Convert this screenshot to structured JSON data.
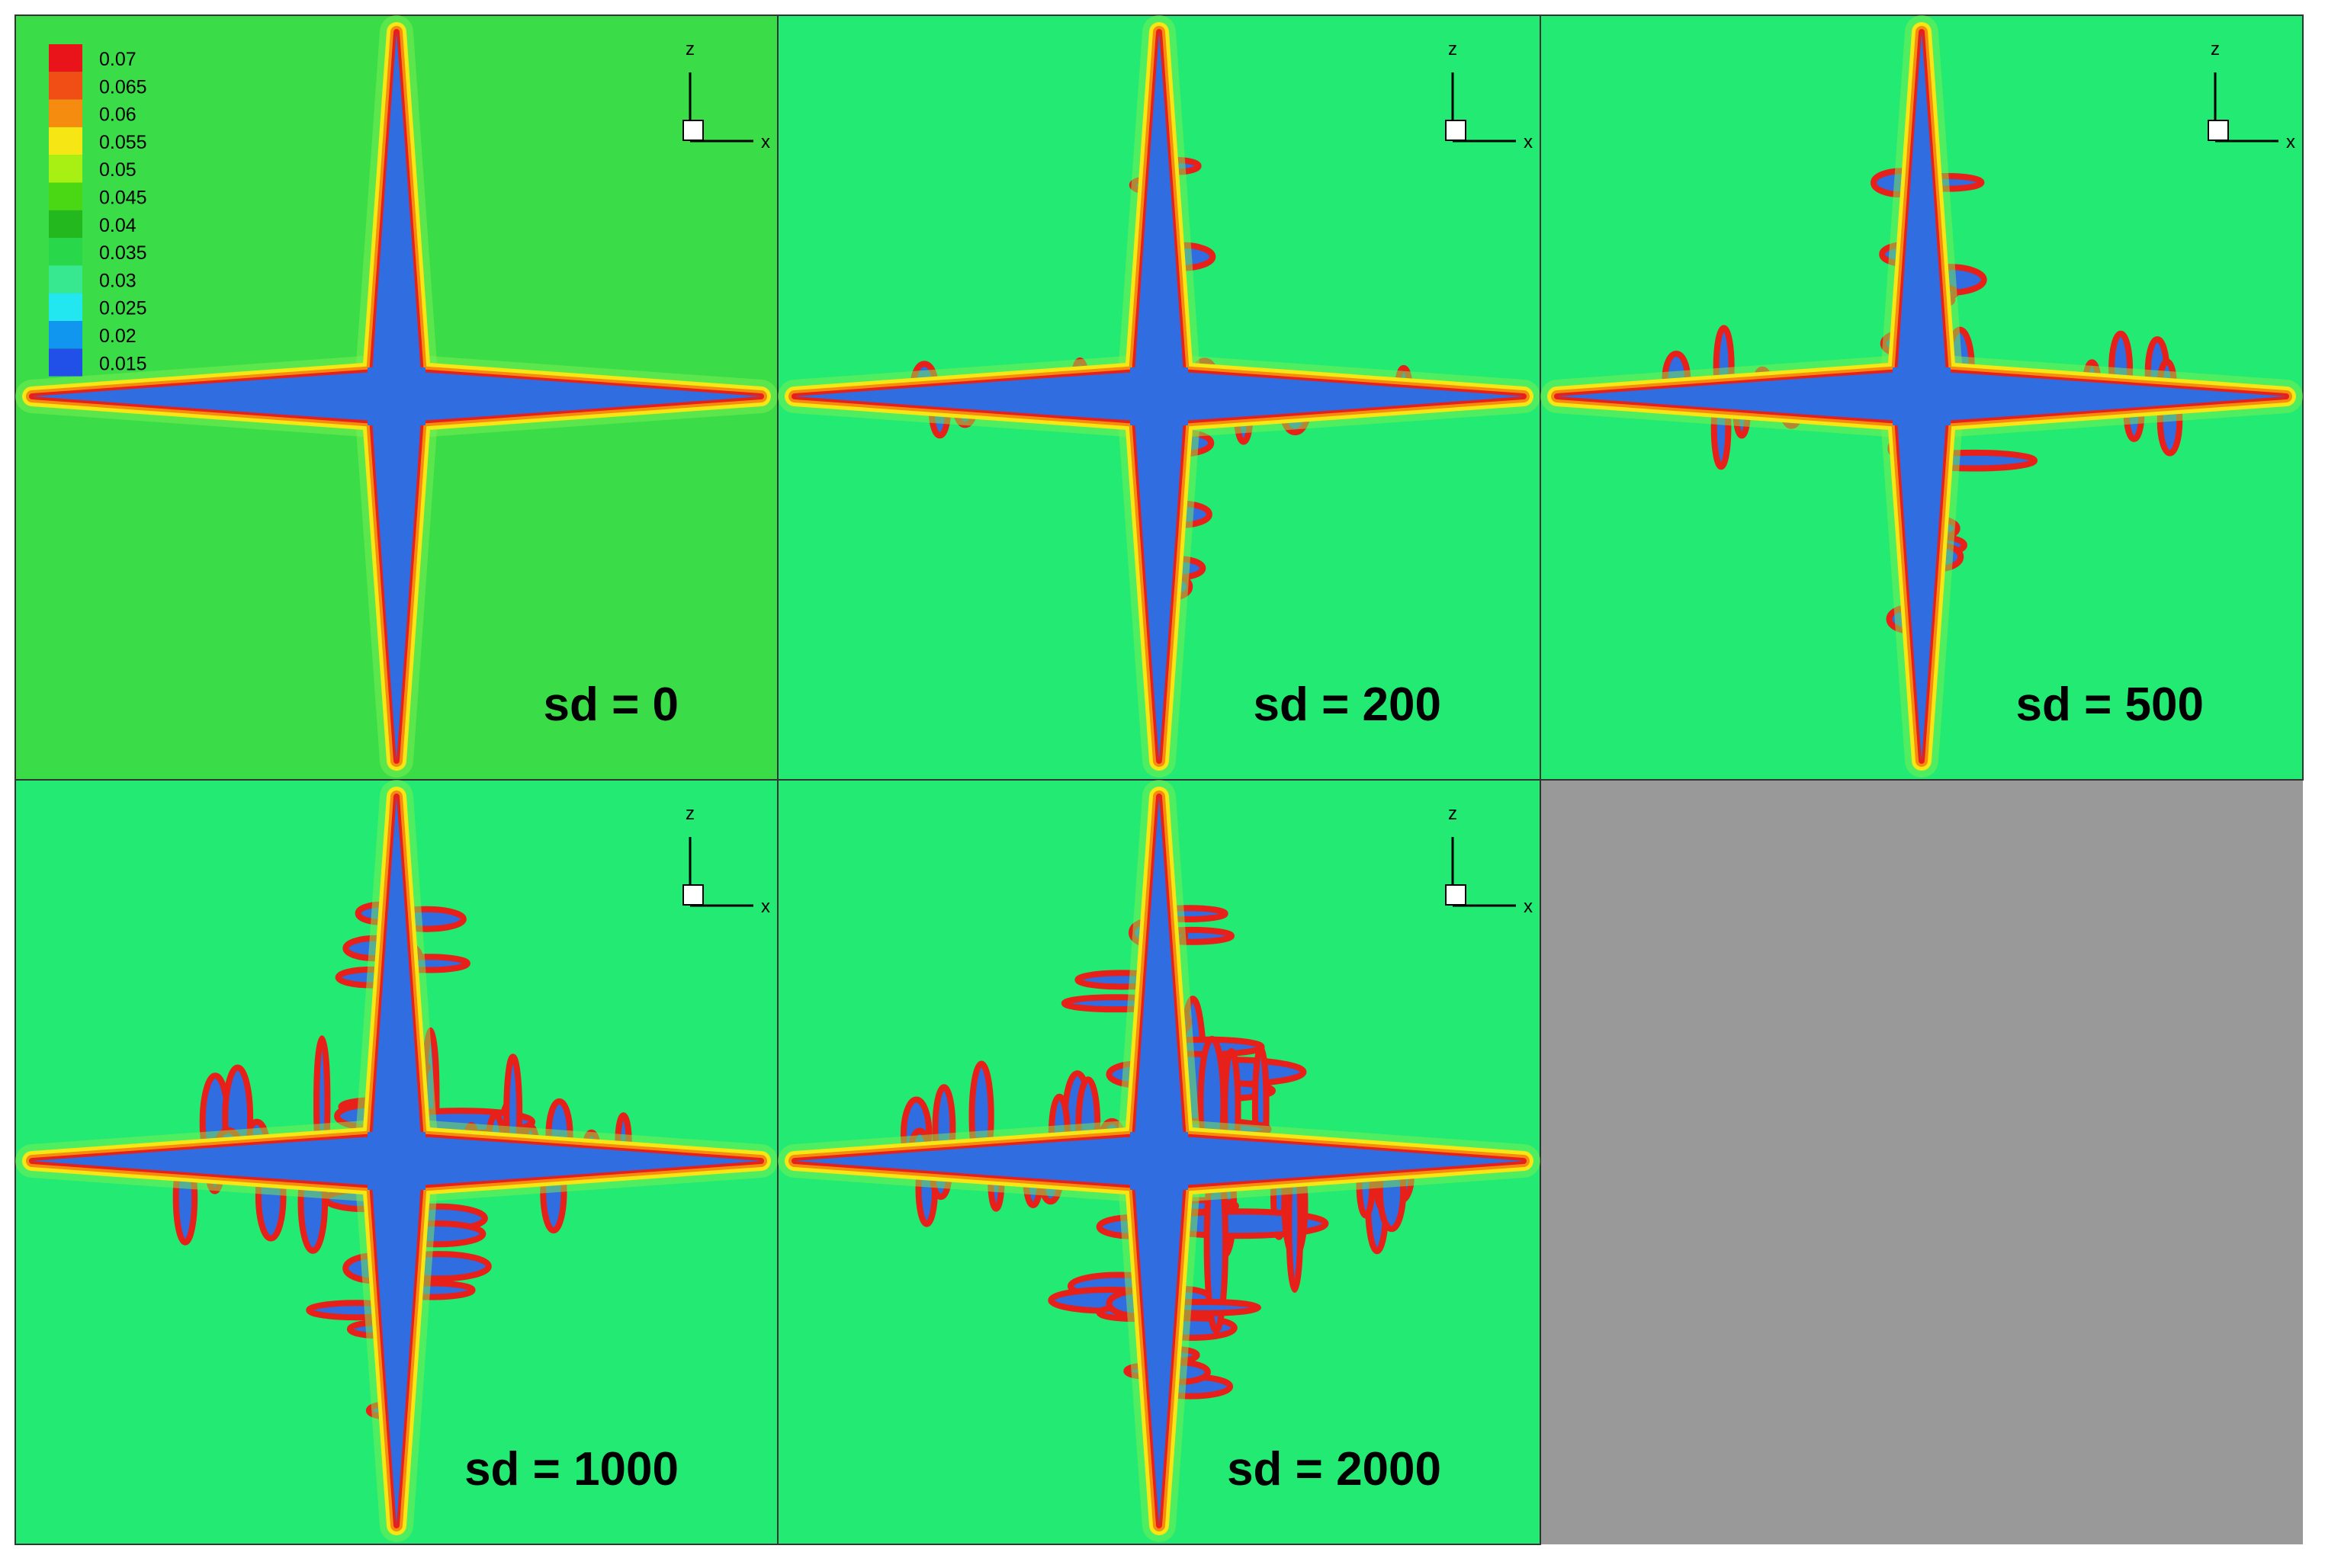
{
  "legend": {
    "levels": [
      "0.07",
      "0.065",
      "0.06",
      "0.055",
      "0.05",
      "0.045",
      "0.04",
      "0.035",
      "0.03",
      "0.025",
      "0.02",
      "0.015"
    ],
    "colors": [
      "#e8141a",
      "#f04e14",
      "#f58c10",
      "#f5e614",
      "#a8f014",
      "#4ad814",
      "#22b81e",
      "#28d84a",
      "#38e890",
      "#22e6f0",
      "#1096ee",
      "#2050e8"
    ]
  },
  "panels": [
    {
      "label": "sd = 0",
      "axis_labels": [
        "z",
        "x"
      ],
      "background": "#3adc48"
    },
    {
      "label": "sd = 200",
      "axis_labels": [
        "z",
        "x"
      ],
      "background": "#22ea72"
    },
    {
      "label": "sd = 500",
      "axis_labels": [
        "z",
        "x"
      ],
      "background": "#22ea72"
    },
    {
      "label": "sd = 1000",
      "axis_labels": [
        "z",
        "x"
      ],
      "background": "#22ea72"
    },
    {
      "label": "sd = 2000",
      "axis_labels": [
        "z",
        "x"
      ],
      "background": "#22ea72"
    }
  ]
}
